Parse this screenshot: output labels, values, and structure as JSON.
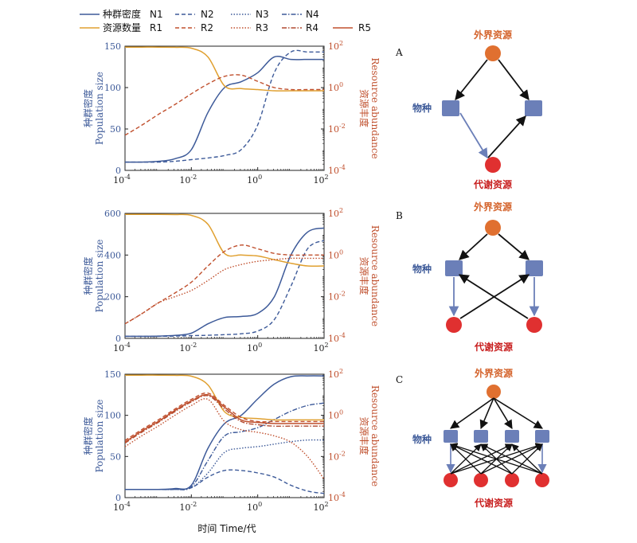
{
  "legend": {
    "species_label": "种群密度",
    "resource_label": "资源数量",
    "n_entries": [
      "N1",
      "N2",
      "N3",
      "N4"
    ],
    "r_entries": [
      "R1",
      "R2",
      "R3",
      "R4",
      "R5"
    ]
  },
  "colors": {
    "species": "#3d5a99",
    "resource_red": "#c0502e",
    "resource_gold": "#e0a030",
    "external": "#e07030",
    "metabolic": "#e03030",
    "species_node": "#6b7fb8"
  },
  "axes": {
    "left_label_cn": "种群密度",
    "left_label_en": "Population size",
    "right_label_cn": "资源丰度",
    "right_label_en": "Resource abundance",
    "x_label": "时间 Time/代",
    "x_ticks": [
      "10",
      "10",
      "10",
      "10"
    ],
    "x_tick_exps": [
      "-4",
      "-2",
      "0",
      "2"
    ],
    "right_ticks": [
      "10",
      "10",
      "10",
      "10"
    ],
    "right_tick_exps": [
      "2",
      "0",
      "-2",
      "-4"
    ]
  },
  "chart_data": [
    {
      "type": "line",
      "panel": "top",
      "x_scale": "log",
      "x_range": [
        0.0001,
        100
      ],
      "y_left_range": [
        0,
        150
      ],
      "y_left_ticks": [
        "0",
        "50",
        "100",
        "150"
      ],
      "y_right_scale": "log",
      "y_right_range": [
        0.0001,
        100
      ],
      "x": [
        0.0001,
        0.000316,
        0.001,
        0.00316,
        0.01,
        0.0316,
        0.1,
        0.316,
        1,
        3.16,
        10,
        31.6,
        100
      ],
      "series": [
        {
          "name": "N1",
          "axis": "left",
          "values": [
            10,
            10,
            11,
            14,
            25,
            70,
            100,
            107,
            118,
            137,
            134,
            134,
            134
          ]
        },
        {
          "name": "N2",
          "axis": "left",
          "values": [
            10,
            10,
            10,
            11,
            13,
            15,
            18,
            25,
            55,
            118,
            143,
            143,
            143
          ]
        },
        {
          "name": "R1",
          "axis": "right",
          "values": [
            90,
            90,
            90,
            88,
            80,
            30,
            1.2,
            0.9,
            0.8,
            0.7,
            0.7,
            0.7,
            0.7
          ]
        },
        {
          "name": "R2",
          "axis": "right",
          "values": [
            0.005,
            0.015,
            0.05,
            0.15,
            0.5,
            1.5,
            3.5,
            4,
            2,
            1,
            0.8,
            0.8,
            0.8
          ]
        }
      ]
    },
    {
      "type": "line",
      "panel": "middle",
      "x_scale": "log",
      "x_range": [
        0.0001,
        100
      ],
      "y_left_range": [
        0,
        600
      ],
      "y_left_ticks": [
        "0",
        "200",
        "400",
        "600"
      ],
      "y_right_scale": "log",
      "y_right_range": [
        0.0001,
        100
      ],
      "x": [
        0.0001,
        0.000316,
        0.001,
        0.00316,
        0.01,
        0.0316,
        0.1,
        0.316,
        1,
        3.16,
        10,
        31.6,
        100
      ],
      "series": [
        {
          "name": "N1",
          "axis": "left",
          "values": [
            10,
            10,
            11,
            14,
            25,
            70,
            100,
            105,
            120,
            200,
            400,
            510,
            530
          ]
        },
        {
          "name": "N2",
          "axis": "left",
          "values": [
            10,
            10,
            10,
            11,
            13,
            15,
            18,
            22,
            35,
            90,
            250,
            430,
            470
          ]
        },
        {
          "name": "R1",
          "axis": "right",
          "values": [
            90,
            90,
            90,
            88,
            80,
            30,
            1.2,
            1.0,
            0.9,
            0.6,
            0.4,
            0.3,
            0.3
          ]
        },
        {
          "name": "R2",
          "axis": "right",
          "values": [
            0.0005,
            0.0015,
            0.005,
            0.015,
            0.05,
            0.3,
            1.5,
            3,
            2,
            1.2,
            1,
            1,
            1
          ]
        },
        {
          "name": "R3",
          "axis": "right",
          "values": [
            0.0005,
            0.0015,
            0.005,
            0.01,
            0.02,
            0.06,
            0.2,
            0.35,
            0.5,
            0.6,
            0.7,
            0.7,
            0.7
          ]
        }
      ]
    },
    {
      "type": "line",
      "panel": "bottom",
      "x_scale": "log",
      "x_range": [
        0.0001,
        100
      ],
      "y_left_range": [
        0,
        150
      ],
      "y_left_ticks": [
        "0",
        "50",
        "100",
        "150"
      ],
      "y_right_scale": "log",
      "y_right_range": [
        0.0001,
        100
      ],
      "x": [
        0.0001,
        0.000316,
        0.001,
        0.00316,
        0.01,
        0.0316,
        0.1,
        0.316,
        1,
        3.16,
        10,
        31.6,
        100
      ],
      "series": [
        {
          "name": "N1",
          "axis": "left",
          "values": [
            10,
            10,
            10,
            11,
            15,
            60,
            90,
            100,
            120,
            138,
            147,
            148,
            148
          ]
        },
        {
          "name": "N2",
          "axis": "left",
          "values": [
            10,
            10,
            10,
            10,
            12,
            25,
            33,
            33,
            30,
            25,
            15,
            8,
            5
          ]
        },
        {
          "name": "N3",
          "axis": "left",
          "values": [
            10,
            10,
            10,
            10,
            12,
            30,
            55,
            60,
            62,
            65,
            68,
            70,
            70
          ]
        },
        {
          "name": "N4",
          "axis": "left",
          "values": [
            10,
            10,
            10,
            10,
            13,
            45,
            75,
            80,
            85,
            95,
            105,
            112,
            115
          ]
        },
        {
          "name": "R1",
          "axis": "right",
          "values": [
            90,
            90,
            90,
            88,
            80,
            30,
            1.5,
            0.8,
            0.7,
            0.6,
            0.6,
            0.6,
            0.6
          ]
        },
        {
          "name": "R2",
          "axis": "right",
          "values": [
            0.06,
            0.2,
            0.6,
            2,
            6,
            12,
            3,
            0.8,
            0.5,
            0.5,
            0.5,
            0.5,
            0.5
          ]
        },
        {
          "name": "R3",
          "axis": "right",
          "values": [
            0.03,
            0.1,
            0.3,
            1,
            3,
            6,
            0.5,
            0.2,
            0.15,
            0.1,
            0.05,
            0.01,
            0.0008
          ]
        },
        {
          "name": "R4",
          "axis": "right",
          "values": [
            0.045,
            0.15,
            0.45,
            1.5,
            4.5,
            9,
            2,
            0.5,
            0.35,
            0.3,
            0.3,
            0.3,
            0.3
          ]
        },
        {
          "name": "R5",
          "axis": "right",
          "values": [
            0.05,
            0.17,
            0.5,
            1.7,
            5,
            10,
            2.5,
            0.6,
            0.45,
            0.4,
            0.4,
            0.4,
            0.4
          ]
        }
      ]
    }
  ],
  "diagrams": {
    "external_label": "外界资源",
    "species_label": "物种",
    "metabolic_label": "代谢资源",
    "panel_letters": [
      "A",
      "B",
      "C"
    ]
  }
}
